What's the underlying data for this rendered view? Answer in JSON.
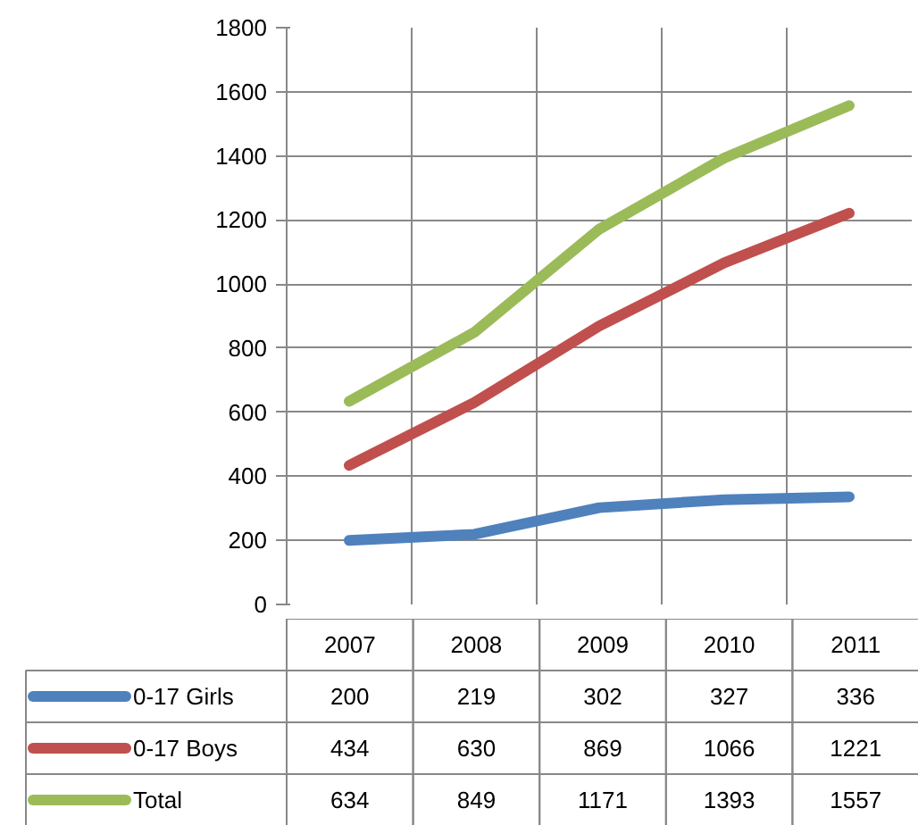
{
  "chart_data": {
    "type": "line",
    "categories": [
      "2007",
      "2008",
      "2009",
      "2010",
      "2011"
    ],
    "series": [
      {
        "name": "0-17 Girls",
        "color": "#4f81bd",
        "values": [
          200,
          219,
          302,
          327,
          336
        ]
      },
      {
        "name": "0-17 Boys",
        "color": "#c0504d",
        "values": [
          434,
          630,
          869,
          1066,
          1221
        ]
      },
      {
        "name": "Total",
        "color": "#9bbb59",
        "values": [
          634,
          849,
          1171,
          1393,
          1557
        ]
      }
    ],
    "ylim": [
      0,
      1800
    ],
    "yticks": [
      0,
      200,
      400,
      600,
      800,
      1000,
      1200,
      1400,
      1600,
      1800
    ],
    "grid": true,
    "legend": "bottom",
    "data_labels": true,
    "marker": "none",
    "line_style": "solid"
  }
}
